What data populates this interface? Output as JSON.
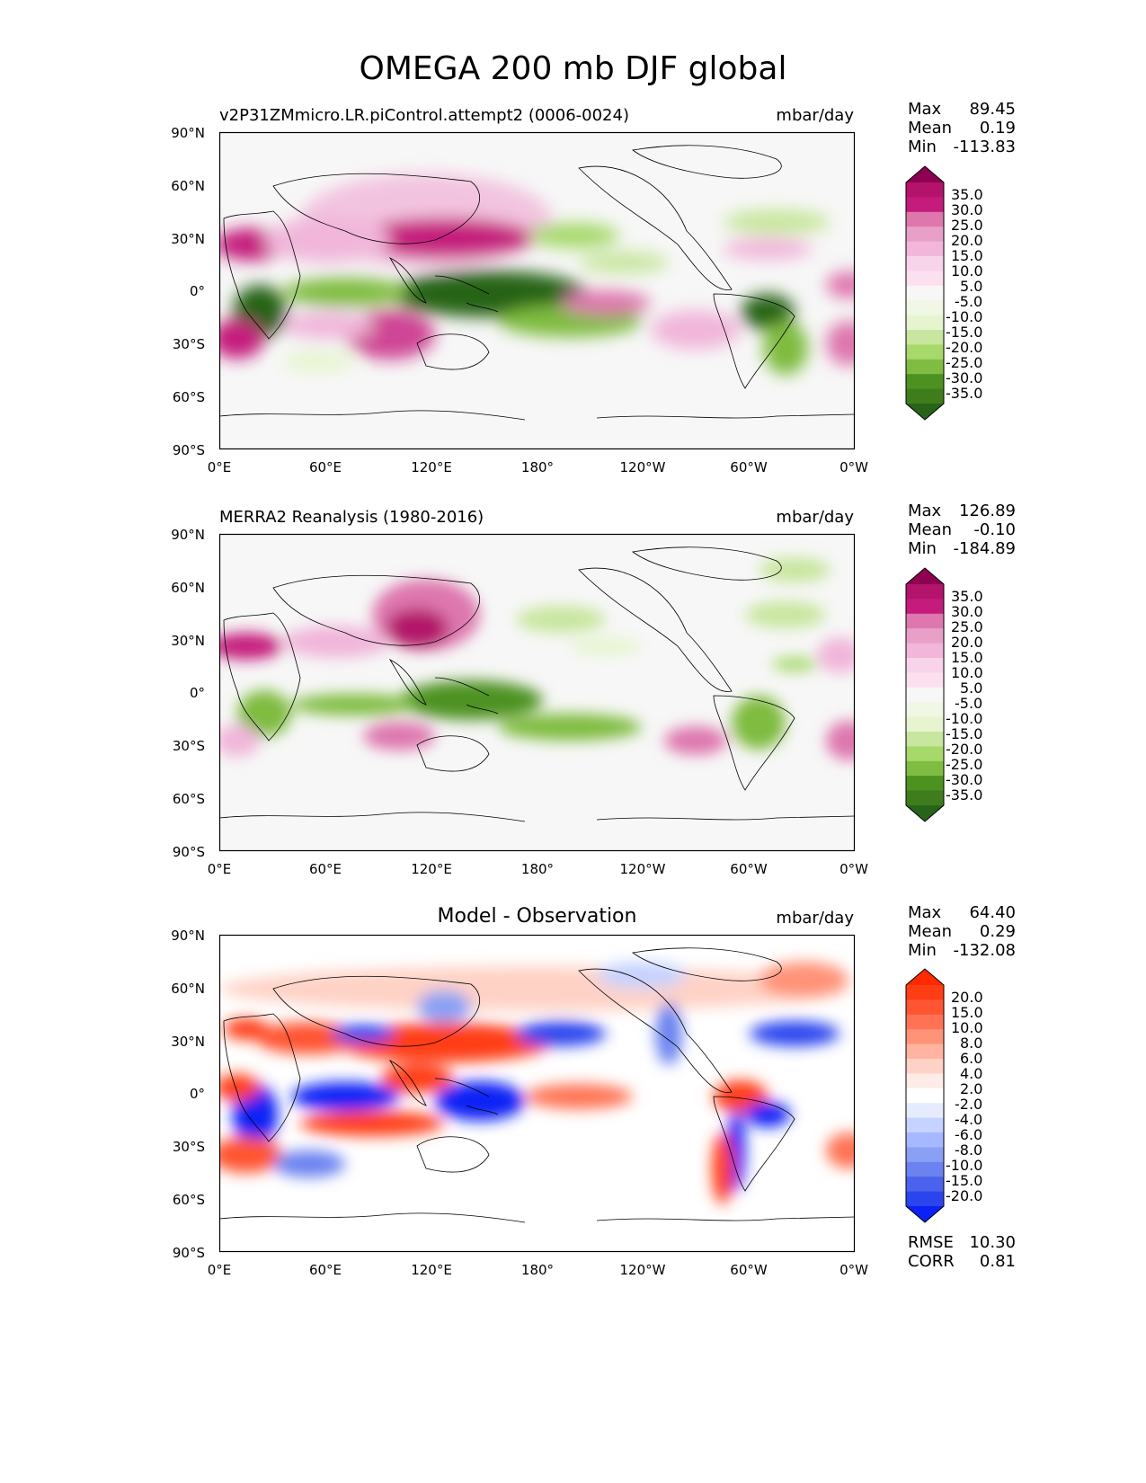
{
  "chart_data": {
    "type": "heatmap",
    "title": "OMEGA 200 mb DJF global",
    "x_ticks": [
      "0°E",
      "60°E",
      "120°E",
      "180°",
      "120°W",
      "60°W",
      "0°W"
    ],
    "y_ticks": [
      "90°N",
      "60°N",
      "30°N",
      "0°",
      "30°S",
      "60°S",
      "90°S"
    ],
    "xlim": [
      0,
      360
    ],
    "ylim": [
      -90,
      90
    ],
    "panels": [
      {
        "title": "v2P31ZMmicro.LR.piControl.attempt2 (0006-0024)",
        "units": "mbar/day",
        "stats": {
          "max_label": "Max",
          "max": "89.45",
          "mean_label": "Mean",
          "mean": "0.19",
          "min_label": "Min",
          "min": "-113.83"
        },
        "colorbar": {
          "labels": [
            "35.0",
            "30.0",
            "25.0",
            "20.0",
            "15.0",
            "10.0",
            "5.0",
            "-5.0",
            "-10.0",
            "-15.0",
            "-20.0",
            "-25.0",
            "-30.0",
            "-35.0"
          ],
          "colors": [
            "#8e0152",
            "#b3136a",
            "#c51b7d",
            "#de77ae",
            "#e8a0c9",
            "#f1b6da",
            "#f7d4ea",
            "#fde0ef",
            "#f7f7f7",
            "#f0f7e5",
            "#e6f5d0",
            "#c8e69f",
            "#a6d96a",
            "#7fbc41",
            "#4d9221",
            "#3f7c1b",
            "#276419"
          ]
        }
      },
      {
        "title": "MERRA2 Reanalysis (1980-2016)",
        "units": "mbar/day",
        "stats": {
          "max_label": "Max",
          "max": "126.89",
          "mean_label": "Mean",
          "mean": "-0.10",
          "min_label": "Min",
          "min": "-184.89"
        },
        "colorbar": {
          "labels": [
            "35.0",
            "30.0",
            "25.0",
            "20.0",
            "15.0",
            "10.0",
            "5.0",
            "-5.0",
            "-10.0",
            "-15.0",
            "-20.0",
            "-25.0",
            "-30.0",
            "-35.0"
          ],
          "colors": [
            "#8e0152",
            "#b3136a",
            "#c51b7d",
            "#de77ae",
            "#e8a0c9",
            "#f1b6da",
            "#f7d4ea",
            "#fde0ef",
            "#f7f7f7",
            "#f0f7e5",
            "#e6f5d0",
            "#c8e69f",
            "#a6d96a",
            "#7fbc41",
            "#4d9221",
            "#3f7c1b",
            "#276419"
          ]
        }
      },
      {
        "title": "Model - Observation",
        "units": "mbar/day",
        "stats": {
          "max_label": "Max",
          "max": "64.40",
          "mean_label": "Mean",
          "mean": "0.29",
          "min_label": "Min",
          "min": "-132.08"
        },
        "colorbar": {
          "labels": [
            "20.0",
            "15.0",
            "10.0",
            "8.0",
            "6.0",
            "4.0",
            "2.0",
            "-2.0",
            "-4.0",
            "-6.0",
            "-8.0",
            "-10.0",
            "-15.0",
            "-20.0"
          ],
          "colors": [
            "#ff2a00",
            "#ff3d14",
            "#ff5533",
            "#ff7354",
            "#ff9378",
            "#ffb3a0",
            "#ffd2c6",
            "#ffece6",
            "#ffffff",
            "#e6ecff",
            "#c6d2ff",
            "#a6b8ff",
            "#8aa0f5",
            "#6b82f0",
            "#4a62ec",
            "#2a44ee",
            "#0a22f5"
          ]
        },
        "metrics": {
          "rmse_label": "RMSE",
          "rmse": "10.30",
          "corr_label": "CORR",
          "corr": "0.81"
        }
      }
    ]
  }
}
